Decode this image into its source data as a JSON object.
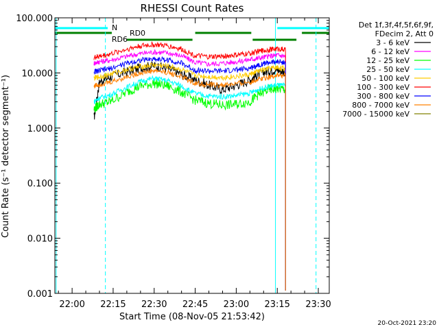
{
  "chart_data": {
    "type": "line",
    "title": "RHESSI Count Rates",
    "xlabel": "Start Time (08-Nov-05 21:53:42)",
    "ylabel": "Count Rate (s⁻¹ detector segment⁻¹)",
    "y_scale": "log",
    "ylim": [
      0.001,
      100
    ],
    "xlim": [
      "21:53:42",
      "23:34:00"
    ],
    "y_ticks": [
      "0.001",
      "0.010",
      "0.100",
      "1.000",
      "10.000",
      "100.000"
    ],
    "x_ticks": [
      "22:00",
      "22:15",
      "22:30",
      "22:45",
      "23:00",
      "23:15",
      "23:30"
    ],
    "legend_header": [
      "Det 1f,3f,4f,5f,6f,9f,",
      "FDecim 2, Att 0"
    ],
    "series": [
      {
        "name": "3 - 6 keV",
        "color": "#000000",
        "x": [
          "22:08",
          "22:10",
          "22:14",
          "22:20",
          "22:25",
          "22:30",
          "22:35",
          "22:40",
          "22:45",
          "22:50",
          "22:55",
          "23:00",
          "23:05",
          "23:08",
          "23:12",
          "23:15",
          "23:18"
        ],
        "values": [
          1.5,
          7.0,
          8.5,
          10.5,
          12.5,
          13.5,
          12.0,
          9.5,
          7.5,
          6.0,
          5.0,
          6.0,
          7.5,
          9.5,
          11.0,
          11.5,
          10.5
        ]
      },
      {
        "name": "6 - 12 keV",
        "color": "#ff00ff",
        "x": [
          "22:08",
          "22:10",
          "22:14",
          "22:20",
          "22:25",
          "22:30",
          "22:35",
          "22:40",
          "22:45",
          "22:50",
          "22:55",
          "23:00",
          "23:05",
          "23:08",
          "23:12",
          "23:15",
          "23:18"
        ],
        "values": [
          15.0,
          16.0,
          17.0,
          20.0,
          22.5,
          24.0,
          23.0,
          20.5,
          15.5,
          14.5,
          15.0,
          16.0,
          17.5,
          18.5,
          20.0,
          21.0,
          20.0
        ]
      },
      {
        "name": "12 - 25 keV",
        "color": "#00ff00",
        "x": [
          "22:08",
          "22:10",
          "22:14",
          "22:20",
          "22:25",
          "22:30",
          "22:35",
          "22:40",
          "22:45",
          "22:50",
          "22:55",
          "23:00",
          "23:05",
          "23:08",
          "23:12",
          "23:15",
          "23:18"
        ],
        "values": [
          2.2,
          2.7,
          3.0,
          4.5,
          5.8,
          6.5,
          5.8,
          4.5,
          3.2,
          2.8,
          2.6,
          2.7,
          3.0,
          4.0,
          5.0,
          5.2,
          5.0
        ]
      },
      {
        "name": "25 - 50 keV",
        "color": "#00ffff",
        "x": [
          "22:08",
          "22:10",
          "22:14",
          "22:20",
          "22:25",
          "22:30",
          "22:35",
          "22:40",
          "22:45",
          "22:50",
          "22:55",
          "23:00",
          "23:05",
          "23:08",
          "23:12",
          "23:15",
          "23:18"
        ],
        "values": [
          3.0,
          3.5,
          4.0,
          5.5,
          7.0,
          8.0,
          7.2,
          5.8,
          4.2,
          3.8,
          3.7,
          3.9,
          4.3,
          5.0,
          5.7,
          6.0,
          5.8
        ]
      },
      {
        "name": "50 - 100 keV",
        "color": "#ffcc00",
        "x": [
          "22:08",
          "22:10",
          "22:14",
          "22:20",
          "22:25",
          "22:30",
          "22:35",
          "22:40",
          "22:45",
          "22:50",
          "22:55",
          "23:00",
          "23:05",
          "23:08",
          "23:12",
          "23:15",
          "23:18"
        ],
        "values": [
          8.0,
          8.5,
          9.5,
          11.5,
          13.0,
          14.0,
          13.2,
          11.5,
          9.0,
          8.5,
          8.3,
          8.6,
          9.3,
          10.8,
          12.0,
          12.5,
          12.0
        ]
      },
      {
        "name": "100 - 300 keV",
        "color": "#ff0000",
        "x": [
          "22:08",
          "22:10",
          "22:14",
          "22:20",
          "22:25",
          "22:30",
          "22:35",
          "22:40",
          "22:45",
          "22:50",
          "22:55",
          "23:00",
          "23:05",
          "23:08",
          "23:12",
          "23:15",
          "23:18"
        ],
        "values": [
          19.0,
          20.0,
          22.0,
          27.0,
          31.0,
          32.5,
          31.0,
          27.0,
          20.5,
          19.5,
          20.0,
          21.0,
          22.5,
          24.5,
          26.5,
          27.5,
          26.5
        ]
      },
      {
        "name": "300 - 800 keV",
        "color": "#0000ff",
        "x": [
          "22:08",
          "22:10",
          "22:14",
          "22:20",
          "22:25",
          "22:30",
          "22:35",
          "22:40",
          "22:45",
          "22:50",
          "22:55",
          "23:00",
          "23:05",
          "23:08",
          "23:12",
          "23:15",
          "23:18"
        ],
        "values": [
          10.5,
          11.0,
          12.0,
          15.0,
          17.0,
          18.0,
          17.2,
          15.0,
          11.2,
          10.8,
          10.8,
          11.3,
          12.2,
          14.0,
          15.5,
          16.0,
          15.5
        ]
      },
      {
        "name": "800 - 7000 keV",
        "color": "#ff8000",
        "x": [
          "22:08",
          "22:10",
          "22:14",
          "22:20",
          "22:25",
          "22:30",
          "22:35",
          "22:40",
          "22:45",
          "22:50",
          "22:55",
          "23:00",
          "23:05",
          "23:08",
          "23:12",
          "23:15",
          "23:18"
        ],
        "values": [
          5.8,
          6.2,
          6.8,
          8.5,
          10.0,
          11.0,
          10.2,
          8.5,
          6.5,
          6.1,
          6.0,
          6.3,
          6.8,
          7.7,
          8.5,
          9.0,
          8.7
        ]
      },
      {
        "name": "7000 - 15000 keV",
        "color": "#808000",
        "x": [],
        "values": []
      }
    ],
    "status_bars": [
      {
        "label": "N",
        "color": "#00ffff",
        "segments": [
          [
            "21:53:42",
            "22:13:00"
          ],
          [
            "23:15:00",
            "23:34:00"
          ]
        ]
      },
      {
        "label": "RD0",
        "color": "#008000",
        "segments": [
          [
            "21:53:42",
            "22:14:30"
          ],
          [
            "22:45:00",
            "23:05:30"
          ],
          [
            "23:24:00",
            "23:34:00"
          ]
        ]
      },
      {
        "label": "RD6",
        "color": "#008000",
        "segments": [
          [
            "22:20:00",
            "22:44:00"
          ],
          [
            "23:06:00",
            "23:22:00"
          ]
        ]
      }
    ],
    "grid": false,
    "legend_position": "right"
  },
  "footer": {
    "timestamp": "20-Oct-2021 23:20"
  }
}
